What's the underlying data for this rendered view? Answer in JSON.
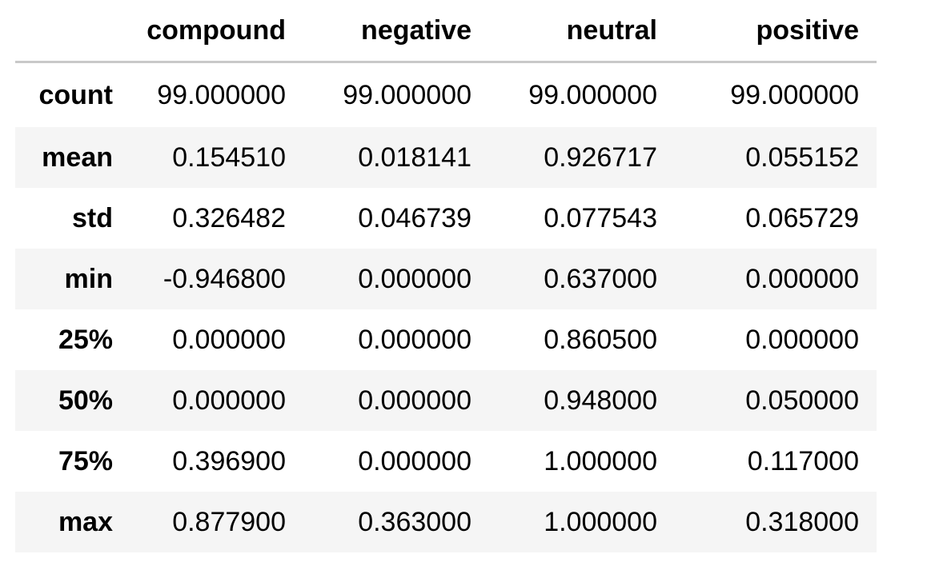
{
  "table": {
    "columns": [
      "",
      "compound",
      "negative",
      "neutral",
      "positive"
    ],
    "rows": [
      {
        "label": "count",
        "values": [
          "99.000000",
          "99.000000",
          "99.000000",
          "99.000000"
        ]
      },
      {
        "label": "mean",
        "values": [
          "0.154510",
          "0.018141",
          "0.926717",
          "0.055152"
        ]
      },
      {
        "label": "std",
        "values": [
          "0.326482",
          "0.046739",
          "0.077543",
          "0.065729"
        ]
      },
      {
        "label": "min",
        "values": [
          "-0.946800",
          "0.000000",
          "0.637000",
          "0.000000"
        ]
      },
      {
        "label": "25%",
        "values": [
          "0.000000",
          "0.000000",
          "0.860500",
          "0.000000"
        ]
      },
      {
        "label": "50%",
        "values": [
          "0.000000",
          "0.000000",
          "0.948000",
          "0.050000"
        ]
      },
      {
        "label": "75%",
        "values": [
          "0.396900",
          "0.000000",
          "1.000000",
          "0.117000"
        ]
      },
      {
        "label": "max",
        "values": [
          "0.877900",
          "0.363000",
          "1.000000",
          "0.318000"
        ]
      }
    ]
  }
}
